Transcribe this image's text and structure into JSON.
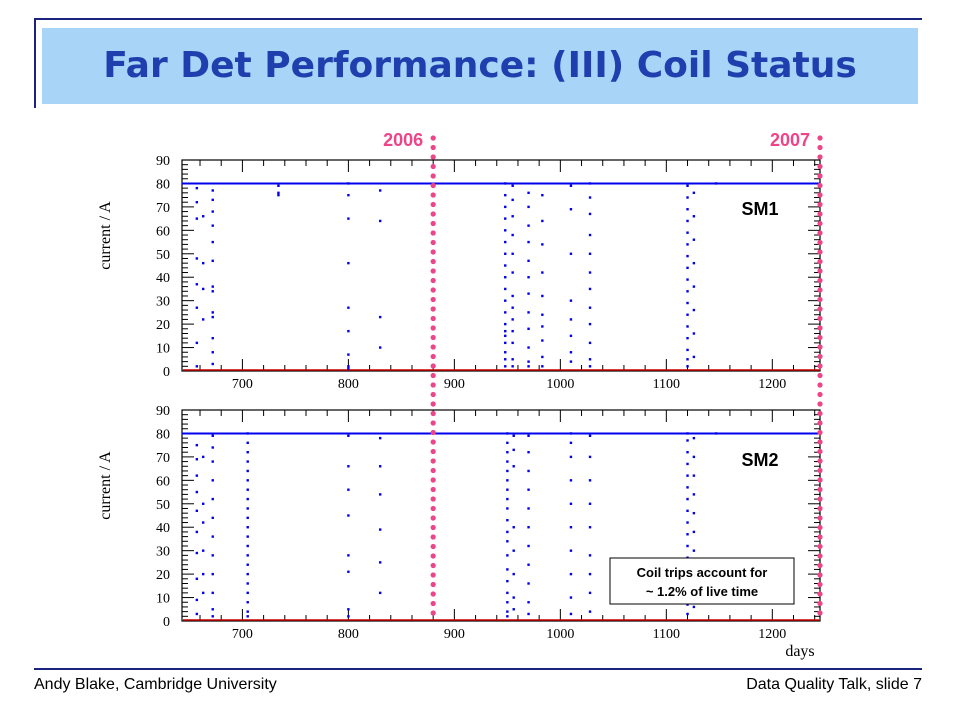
{
  "slide": {
    "title": "Far Det Performance: (III) Coil Status",
    "footer_left": "Andy Blake, Cambridge University",
    "footer_right": "Data Quality Talk, slide 7"
  },
  "colors": {
    "title_text": "#1f3fae",
    "title_bg": "#a8d4f8",
    "data": "#0000ee",
    "year_marker": "#ee4488",
    "zero_line": "#cc0000",
    "frame": "#1a237e"
  },
  "annotations": {
    "year_2006": "2006",
    "year_2007": "2007",
    "year_2006_day": 880,
    "year_2007_day": 1245,
    "note_line1": "Coil trips account for",
    "note_line2": "~ 1.2% of live time"
  },
  "chart_data": [
    {
      "type": "scatter",
      "panel_label": "SM1",
      "xlabel": "",
      "ylabel": "current / A",
      "xlim": [
        643,
        1245
      ],
      "ylim": [
        0,
        90
      ],
      "x_ticks": [
        700,
        800,
        900,
        1000,
        1100,
        1200
      ],
      "y_ticks": [
        0,
        10,
        20,
        30,
        40,
        50,
        60,
        70,
        80,
        90
      ],
      "nominal_current": 80,
      "nominal_line_extent": [
        643,
        1245
      ],
      "trip_points": [
        {
          "day": 657,
          "values": [
            78,
            72,
            65,
            48,
            37,
            27,
            12,
            2
          ]
        },
        {
          "day": 663,
          "values": [
            66,
            46,
            35,
            22
          ]
        },
        {
          "day": 672,
          "values": [
            77,
            73,
            68,
            62,
            55,
            47,
            36,
            34,
            25,
            23,
            14,
            8,
            3
          ]
        },
        {
          "day": 734,
          "values": [
            79,
            76,
            75
          ]
        },
        {
          "day": 800,
          "values": [
            80,
            75,
            65,
            46,
            27,
            17,
            7,
            2,
            1
          ]
        },
        {
          "day": 830,
          "values": [
            77,
            64,
            23,
            10
          ]
        },
        {
          "day": 948,
          "values": [
            80,
            75,
            70,
            65,
            60,
            55,
            50,
            45,
            40,
            35,
            30,
            25,
            20,
            17,
            15,
            12,
            8,
            5,
            2
          ]
        },
        {
          "day": 955,
          "values": [
            79,
            73,
            66,
            58,
            50,
            42,
            32,
            27,
            22,
            17,
            12,
            5,
            2
          ]
        },
        {
          "day": 970,
          "values": [
            76,
            70,
            62,
            55,
            47,
            40,
            33,
            25,
            18,
            10,
            4,
            2
          ]
        },
        {
          "day": 983,
          "values": [
            75,
            64,
            54,
            42,
            32,
            24,
            19,
            13,
            6,
            2
          ]
        },
        {
          "day": 1010,
          "values": [
            79,
            69,
            50,
            30,
            22,
            15,
            8,
            4
          ]
        },
        {
          "day": 1028,
          "values": [
            80,
            74,
            67,
            58,
            50,
            42,
            35,
            27,
            20,
            12,
            5,
            2
          ]
        },
        {
          "day": 1120,
          "values": [
            79,
            74,
            69,
            64,
            59,
            54,
            49,
            44,
            39,
            34,
            29,
            24,
            19,
            14,
            9,
            5,
            2
          ]
        },
        {
          "day": 1126,
          "values": [
            76,
            66,
            56,
            46,
            36,
            26,
            16,
            6
          ]
        },
        {
          "day": 1147,
          "values": [
            80
          ]
        }
      ]
    },
    {
      "type": "scatter",
      "panel_label": "SM2",
      "xlabel": "days",
      "ylabel": "current / A",
      "xlim": [
        643,
        1245
      ],
      "ylim": [
        0,
        90
      ],
      "x_ticks": [
        700,
        800,
        900,
        1000,
        1100,
        1200
      ],
      "y_ticks": [
        0,
        10,
        20,
        30,
        40,
        50,
        60,
        70,
        80,
        90
      ],
      "nominal_current": 80,
      "nominal_line_extent": [
        643,
        1245
      ],
      "trip_points": [
        {
          "day": 657,
          "values": [
            75,
            69,
            62,
            55,
            47,
            38,
            29,
            18,
            9,
            3
          ]
        },
        {
          "day": 663,
          "values": [
            70,
            50,
            42,
            30,
            20,
            12
          ]
        },
        {
          "day": 672,
          "values": [
            79,
            74,
            68,
            60,
            52,
            44,
            36,
            28,
            20,
            12,
            5,
            2
          ]
        },
        {
          "day": 705,
          "values": [
            80,
            76,
            72,
            68,
            64,
            60,
            56,
            52,
            48,
            44,
            40,
            36,
            32,
            28,
            24,
            20,
            16,
            12,
            8,
            4,
            2
          ]
        },
        {
          "day": 800,
          "values": [
            79,
            66,
            56,
            45,
            28,
            21,
            5,
            2
          ]
        },
        {
          "day": 830,
          "values": [
            78,
            66,
            54,
            39,
            25,
            12
          ]
        },
        {
          "day": 950,
          "values": [
            80,
            76,
            72,
            68,
            64,
            60,
            56,
            52,
            48,
            43,
            38,
            34,
            28,
            22,
            17,
            12,
            8,
            4,
            2
          ]
        },
        {
          "day": 956,
          "values": [
            79,
            73,
            66,
            40,
            30,
            20,
            10,
            5
          ]
        },
        {
          "day": 970,
          "values": [
            79,
            72,
            64,
            56,
            48,
            40,
            32,
            24,
            16,
            8,
            3
          ]
        },
        {
          "day": 1010,
          "values": [
            80,
            76,
            70,
            60,
            50,
            40,
            30,
            20,
            10,
            3
          ]
        },
        {
          "day": 1028,
          "values": [
            79,
            70,
            60,
            50,
            40,
            28,
            20,
            12,
            4
          ]
        },
        {
          "day": 1120,
          "values": [
            80,
            77,
            72,
            67,
            62,
            57,
            52,
            47,
            42,
            37,
            32,
            27,
            22,
            17,
            12,
            7,
            3
          ]
        },
        {
          "day": 1126,
          "values": [
            78,
            70,
            62,
            54,
            46,
            38,
            30,
            22,
            14,
            6
          ]
        },
        {
          "day": 1147,
          "values": [
            80
          ]
        }
      ]
    }
  ]
}
